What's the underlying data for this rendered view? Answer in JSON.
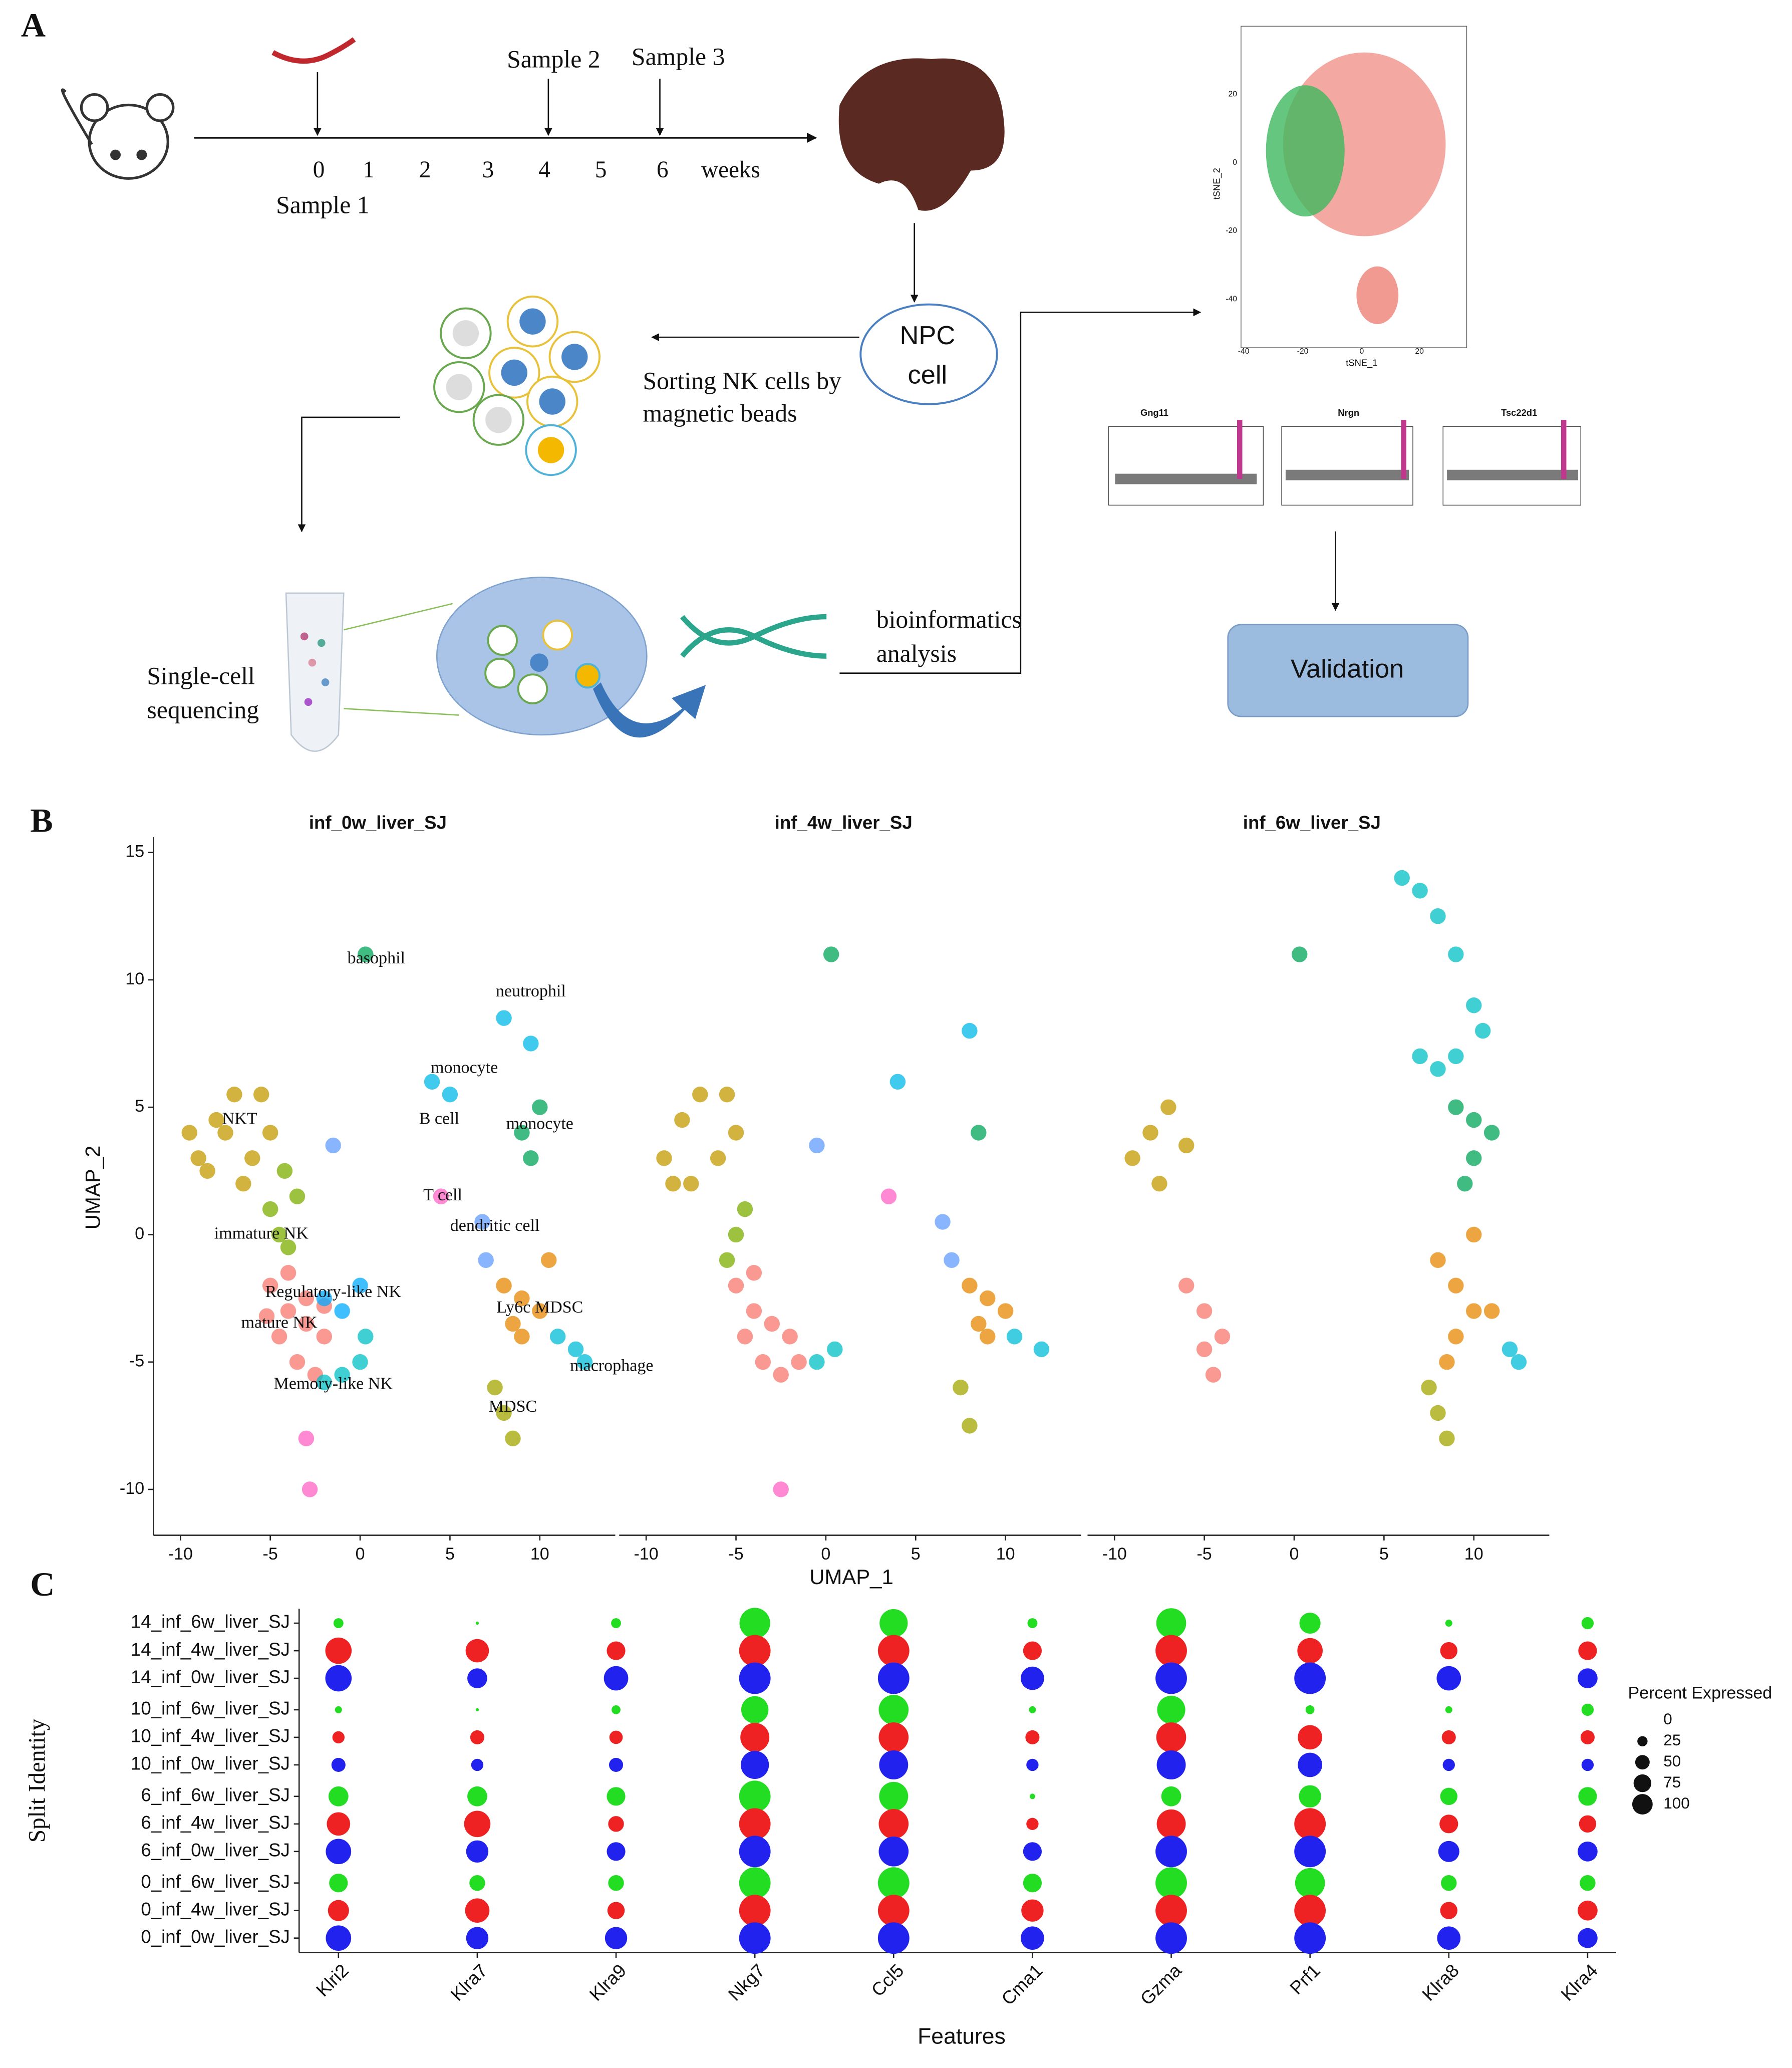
{
  "panel_a": {
    "label": "A",
    "samples": [
      "Sample 1",
      "Sample 2",
      "Sample 3"
    ],
    "timeline": {
      "ticks": [
        0,
        1,
        2,
        3,
        4,
        5,
        6
      ],
      "unit": "weeks"
    },
    "npc": [
      "NPC",
      "cell"
    ],
    "sorting": [
      "Sorting NK cells by",
      "magnetic beads"
    ],
    "sequencing": [
      "Single-cell",
      "sequencing"
    ],
    "analysis": [
      "bioinformatics",
      "analysis"
    ],
    "validation": "Validation",
    "tsne": {
      "xlabel": "tSNE_1",
      "ylabel": "tSNE_2",
      "xticks": [
        -40,
        -20,
        0,
        20
      ],
      "yticks": [
        20,
        0,
        -20,
        -40
      ]
    },
    "violin_titles": [
      "Gng11",
      "Nrgn",
      "Tsc22d1"
    ]
  },
  "chart_data": [
    {
      "type": "scatter",
      "panel": "B",
      "title": "inf_0w_liver_SJ",
      "ylabel": "UMAP_2",
      "xlim": [
        -11.5,
        14.2
      ],
      "ylim": [
        -11.8,
        15.6
      ],
      "xticks": [
        -10,
        -5,
        0,
        5,
        10
      ],
      "yticks": [
        -10,
        -5,
        0,
        5,
        10,
        15
      ],
      "annotations": [
        "basophil",
        "neutrophil",
        "monocyte",
        "B cell",
        "monocyte",
        "NKT",
        "T cell",
        "immature NK",
        "dendritic cell",
        "Regulatory-like NK",
        "Ly6c  MDSC",
        "mature NK",
        "macrophage",
        "Memory-like  NK",
        "MDSC"
      ],
      "series": [
        {
          "color": "#c49a00",
          "x": [
            -9,
            -8,
            -7,
            -6,
            -5,
            -6.5,
            -8.5,
            -7.5,
            -9.5,
            -5.5
          ],
          "y": [
            3,
            4.5,
            5.5,
            3,
            4,
            2,
            2.5,
            4,
            4,
            5.5
          ]
        },
        {
          "color": "#7cae00",
          "x": [
            -5,
            -4.5,
            -4,
            -3.5,
            -4.2
          ],
          "y": [
            1,
            0,
            -0.5,
            1.5,
            2.5
          ]
        },
        {
          "color": "#f8766d",
          "x": [
            -5,
            -4,
            -3,
            -2,
            -4.5,
            -3.5,
            -2.5,
            -4,
            -3,
            -5.2,
            -2
          ],
          "y": [
            -2,
            -3,
            -3.5,
            -4,
            -4,
            -5,
            -5.5,
            -1.5,
            -2.5,
            -3.2,
            -2.8
          ]
        },
        {
          "color": "#00a9ff",
          "x": [
            -2,
            -1,
            0
          ],
          "y": [
            -2.5,
            -3,
            -2
          ]
        },
        {
          "color": "#00bfc4",
          "x": [
            -1,
            0,
            0.3,
            -2
          ],
          "y": [
            -5.5,
            -5,
            -4,
            -5.8
          ]
        },
        {
          "color": "#ff61c3",
          "x": [
            -3,
            -2.8,
            4.5
          ],
          "y": [
            -8,
            -10,
            1.5
          ]
        },
        {
          "color": "#00a65a",
          "x": [
            0.3,
            9,
            10,
            9.5
          ],
          "y": [
            11,
            4,
            5,
            3
          ]
        },
        {
          "color": "#00b8e7",
          "x": [
            4,
            5,
            8,
            9.5
          ],
          "y": [
            6,
            5.5,
            8.5,
            7.5
          ]
        },
        {
          "color": "#619cff",
          "x": [
            6.8,
            7,
            -1.5
          ],
          "y": [
            0.5,
            -1,
            3.5
          ]
        },
        {
          "color": "#e58700",
          "x": [
            8,
            9,
            10,
            9,
            8.5,
            10.5
          ],
          "y": [
            -2,
            -2.5,
            -3,
            -4,
            -3.5,
            -1
          ]
        },
        {
          "color": "#00bcd8",
          "x": [
            11,
            12,
            12.5
          ],
          "y": [
            -4,
            -4.5,
            -5
          ]
        },
        {
          "color": "#a3a500",
          "x": [
            7.5,
            8,
            8.5
          ],
          "y": [
            -6,
            -7,
            -8
          ]
        }
      ]
    },
    {
      "type": "scatter",
      "panel": "",
      "title": "inf_4w_liver_SJ",
      "xlabel": "UMAP_1",
      "xlim": [
        -11.5,
        14.2
      ],
      "ylim": [
        -11.8,
        15.6
      ],
      "xticks": [
        -10,
        -5,
        0,
        5,
        10
      ],
      "series": [
        {
          "color": "#c49a00",
          "x": [
            -9,
            -8,
            -7,
            -6,
            -5,
            -7.5,
            -8.5,
            -5.5
          ],
          "y": [
            3,
            4.5,
            5.5,
            3,
            4,
            2,
            2,
            5.5
          ]
        },
        {
          "color": "#7cae00",
          "x": [
            -5,
            -4.5,
            -5.5
          ],
          "y": [
            0,
            1,
            -1
          ]
        },
        {
          "color": "#f8766d",
          "x": [
            -5,
            -4,
            -3,
            -2,
            -4.5,
            -3.5,
            -2.5,
            -4,
            -1.5
          ],
          "y": [
            -2,
            -3,
            -3.5,
            -4,
            -4,
            -5,
            -5.5,
            -1.5,
            -5
          ]
        },
        {
          "color": "#00bfc4",
          "x": [
            -0.5,
            0.5
          ],
          "y": [
            -5,
            -4.5
          ]
        },
        {
          "color": "#ff61c3",
          "x": [
            -2.5,
            3.5
          ],
          "y": [
            -10,
            1.5
          ]
        },
        {
          "color": "#00a65a",
          "x": [
            0.3,
            8.5
          ],
          "y": [
            11,
            4
          ]
        },
        {
          "color": "#00b8e7",
          "x": [
            4,
            8
          ],
          "y": [
            6,
            8
          ]
        },
        {
          "color": "#619cff",
          "x": [
            6.5,
            7,
            -0.5
          ],
          "y": [
            0.5,
            -1,
            3.5
          ]
        },
        {
          "color": "#e58700",
          "x": [
            8,
            9,
            10,
            9,
            8.5
          ],
          "y": [
            -2,
            -2.5,
            -3,
            -4,
            -3.5
          ]
        },
        {
          "color": "#00bcd8",
          "x": [
            10.5,
            12
          ],
          "y": [
            -4,
            -4.5
          ]
        },
        {
          "color": "#a3a500",
          "x": [
            7.5,
            8
          ],
          "y": [
            -6,
            -7.5
          ]
        }
      ]
    },
    {
      "type": "scatter",
      "panel": "",
      "title": "inf_6w_liver_SJ",
      "xlim": [
        -11.5,
        14.2
      ],
      "ylim": [
        -11.8,
        15.6
      ],
      "xticks": [
        -10,
        -5,
        0,
        5,
        10
      ],
      "series": [
        {
          "color": "#c49a00",
          "x": [
            -9,
            -8,
            -7,
            -6,
            -7.5
          ],
          "y": [
            3,
            4,
            5,
            3.5,
            2
          ]
        },
        {
          "color": "#f8766d",
          "x": [
            -6,
            -5,
            -4,
            -5,
            -4.5
          ],
          "y": [
            -2,
            -3,
            -4,
            -4.5,
            -5.5
          ]
        },
        {
          "color": "#00a65a",
          "x": [
            0.3,
            9,
            10,
            11,
            10,
            9.5
          ],
          "y": [
            11,
            5,
            4.5,
            4,
            3,
            2
          ]
        },
        {
          "color": "#00bfc4",
          "x": [
            6,
            7,
            8,
            9,
            10,
            10.5,
            9,
            8,
            7
          ],
          "y": [
            14,
            13.5,
            12.5,
            11,
            9,
            8,
            7,
            6.5,
            7
          ]
        },
        {
          "color": "#e58700",
          "x": [
            8,
            9,
            10,
            11,
            9,
            10,
            8.5
          ],
          "y": [
            -1,
            -2,
            -3,
            -3,
            -4,
            0,
            -5
          ]
        },
        {
          "color": "#00bcd8",
          "x": [
            12,
            12.5
          ],
          "y": [
            -4.5,
            -5
          ]
        },
        {
          "color": "#a3a500",
          "x": [
            7.5,
            8,
            8.5
          ],
          "y": [
            -6,
            -7,
            -8
          ]
        }
      ]
    },
    {
      "type": "dot",
      "panel": "C",
      "xlabel": "Features",
      "ylabel": "Split Identity",
      "categories": [
        "Klri2",
        "Klra7",
        "Klra9",
        "Nkg7",
        "Ccl5",
        "Cma1",
        "Gzma",
        "Prf1",
        "Klra8",
        "Klra4"
      ],
      "size_legend": {
        "title": "Percent Expressed",
        "values": [
          0,
          25,
          50,
          75,
          100
        ]
      },
      "series": [
        {
          "name": "14_inf_6w_liver_SJ",
          "color": "#22dd22",
          "values": [
            10,
            1,
            10,
            95,
            80,
            10,
            90,
            45,
            5,
            15
          ]
        },
        {
          "name": "14_inf_4w_liver_SJ",
          "color": "#ee2222",
          "values": [
            70,
            55,
            35,
            100,
            100,
            35,
            100,
            65,
            30,
            35
          ]
        },
        {
          "name": "14_inf_0w_liver_SJ",
          "color": "#2222ee",
          "values": [
            70,
            40,
            60,
            100,
            100,
            55,
            100,
            100,
            60,
            40
          ]
        },
        {
          "name": "10_inf_6w_liver_SJ",
          "color": "#22dd22",
          "values": [
            5,
            1,
            8,
            75,
            90,
            5,
            80,
            8,
            5,
            15
          ]
        },
        {
          "name": "10_inf_4w_liver_SJ",
          "color": "#ee2222",
          "values": [
            15,
            20,
            18,
            85,
            90,
            20,
            90,
            60,
            20,
            20
          ]
        },
        {
          "name": "10_inf_0w_liver_SJ",
          "color": "#2222ee",
          "values": [
            20,
            15,
            20,
            80,
            85,
            15,
            85,
            60,
            15,
            15
          ]
        },
        {
          "name": "6_inf_6w_liver_SJ",
          "color": "#22dd22",
          "values": [
            40,
            40,
            35,
            100,
            85,
            3,
            40,
            50,
            30,
            35
          ]
        },
        {
          "name": "6_inf_4w_liver_SJ",
          "color": "#ee2222",
          "values": [
            55,
            70,
            25,
            100,
            90,
            15,
            85,
            100,
            35,
            30
          ]
        },
        {
          "name": "6_inf_0w_liver_SJ",
          "color": "#2222ee",
          "values": [
            65,
            50,
            35,
            100,
            90,
            35,
            100,
            100,
            45,
            40
          ]
        },
        {
          "name": "0_inf_6w_liver_SJ",
          "color": "#22dd22",
          "values": [
            35,
            25,
            25,
            100,
            100,
            35,
            100,
            90,
            25,
            25
          ]
        },
        {
          "name": "0_inf_4w_liver_SJ",
          "color": "#ee2222",
          "values": [
            45,
            60,
            30,
            100,
            100,
            50,
            100,
            100,
            30,
            40
          ]
        },
        {
          "name": "0_inf_0w_liver_SJ",
          "color": "#2222ee",
          "values": [
            65,
            50,
            50,
            100,
            100,
            55,
            100,
            100,
            55,
            40
          ]
        }
      ]
    }
  ]
}
